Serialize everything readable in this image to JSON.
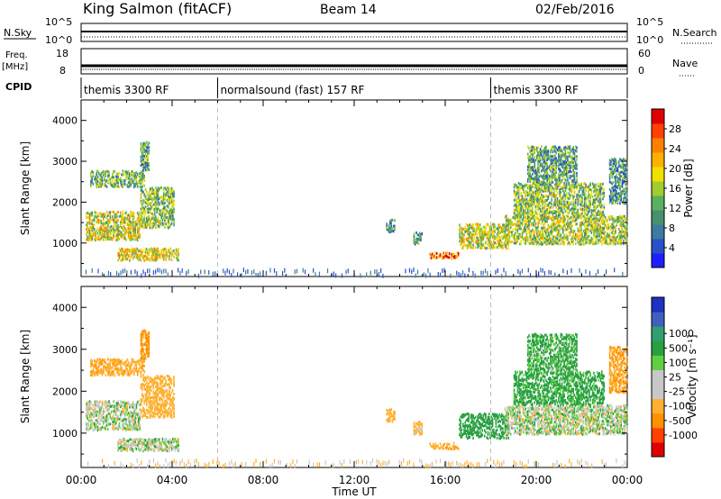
{
  "header": {
    "station": "King Salmon (fitACF)",
    "beam": "Beam 14",
    "date": "02/Feb/2016"
  },
  "noise_panel": {
    "left_label": "N.Sky",
    "right_label": "N.Search",
    "y_ticks_left": [
      "10^5",
      "10^0"
    ],
    "y_ticks_right": [
      "10^5",
      "10^0"
    ]
  },
  "freq_panel": {
    "left_label_1": "Freq.",
    "left_label_2": "[MHz]",
    "right_label": "Nave",
    "y_ticks_left": [
      "18",
      "8"
    ],
    "y_ticks_right": [
      "60",
      "0"
    ]
  },
  "cpid_panel": {
    "label": "CPID",
    "segments": [
      {
        "name": "themis 3300 RF",
        "start_hour": 0,
        "end_hour": 6
      },
      {
        "name": "normalsound (fast) 157 RF",
        "start_hour": 6,
        "end_hour": 18
      },
      {
        "name": "themis 3300 RF",
        "start_hour": 18,
        "end_hour": 24
      }
    ]
  },
  "chart_data": [
    {
      "type": "heatmap",
      "panel": "power",
      "ylabel": "Slant Range [km]",
      "xlabel": "Time UT",
      "xlim_hours": [
        0,
        24
      ],
      "ylim_km": [
        180,
        4500
      ],
      "y_ticks": [
        "1000",
        "2000",
        "3000",
        "4000"
      ],
      "x_ticks": [
        "00:00",
        "04:00",
        "08:00",
        "12:00",
        "16:00",
        "20:00",
        "00:00"
      ],
      "colorbar": {
        "label": "Power [dB]",
        "ticks": [
          "4",
          "8",
          "12",
          "16",
          "20",
          "24",
          "28"
        ],
        "colors": [
          "#1e1eff",
          "#2850c8",
          "#3c7aa0",
          "#48906e",
          "#58b060",
          "#a0cc30",
          "#f0e000",
          "#ffb000",
          "#ff8000",
          "#ff4000",
          "#e00000"
        ]
      },
      "echo_regions": [
        {
          "t0": 0.2,
          "t1": 2.6,
          "r0": 1100,
          "r1": 1800,
          "level": 0.55
        },
        {
          "t0": 0.4,
          "t1": 2.8,
          "r0": 2400,
          "r1": 2800,
          "level": 0.4
        },
        {
          "t0": 2.6,
          "t1": 4.1,
          "r0": 1400,
          "r1": 2400,
          "level": 0.45
        },
        {
          "t0": 1.6,
          "t1": 4.3,
          "r0": 600,
          "r1": 900,
          "level": 0.6
        },
        {
          "t0": 2.6,
          "t1": 3.0,
          "r0": 2800,
          "r1": 3500,
          "level": 0.35
        },
        {
          "t0": 13.4,
          "t1": 13.8,
          "r0": 1300,
          "r1": 1600,
          "level": 0.3
        },
        {
          "t0": 14.6,
          "t1": 15.0,
          "r0": 1000,
          "r1": 1300,
          "level": 0.3
        },
        {
          "t0": 15.3,
          "t1": 16.6,
          "r0": 650,
          "r1": 800,
          "level": 0.8
        },
        {
          "t0": 16.6,
          "t1": 18.8,
          "r0": 900,
          "r1": 1500,
          "level": 0.55
        },
        {
          "t0": 18.6,
          "t1": 24.0,
          "r0": 1000,
          "r1": 1700,
          "level": 0.5
        },
        {
          "t0": 19.0,
          "t1": 23.0,
          "r0": 1700,
          "r1": 2500,
          "level": 0.45
        },
        {
          "t0": 19.6,
          "t1": 21.8,
          "r0": 2500,
          "r1": 3400,
          "level": 0.35
        },
        {
          "t0": 23.2,
          "t1": 24.0,
          "r0": 2000,
          "r1": 3100,
          "level": 0.3
        }
      ]
    },
    {
      "type": "heatmap",
      "panel": "velocity",
      "ylabel": "Slant Range [km]",
      "xlabel": "Time UT",
      "xlim_hours": [
        0,
        24
      ],
      "ylim_km": [
        180,
        4500
      ],
      "y_ticks": [
        "1000",
        "2000",
        "3000",
        "4000"
      ],
      "x_ticks": [
        "00:00",
        "04:00",
        "08:00",
        "12:00",
        "16:00",
        "20:00",
        "00:00"
      ],
      "colorbar": {
        "label": "Velocity [m s⁻¹]",
        "ticks": [
          "-1000",
          "-500",
          "-100",
          "-25",
          "25",
          "100",
          "500",
          "1000"
        ],
        "colors": [
          "#e00000",
          "#ff4000",
          "#ff9000",
          "#ffb030",
          "#c8c8c8",
          "#c8c8c8",
          "#60d040",
          "#28a040",
          "#30a070",
          "#4060c0",
          "#2030c0"
        ]
      },
      "echo_regions": [
        {
          "t0": 0.2,
          "t1": 2.6,
          "r0": 1100,
          "r1": 1800,
          "velocity": 0
        },
        {
          "t0": 0.4,
          "t1": 2.8,
          "r0": 2400,
          "r1": 2800,
          "velocity": -400
        },
        {
          "t0": 2.6,
          "t1": 4.1,
          "r0": 1400,
          "r1": 2400,
          "velocity": -300
        },
        {
          "t0": 1.6,
          "t1": 4.3,
          "r0": 600,
          "r1": 900,
          "velocity": 0
        },
        {
          "t0": 2.6,
          "t1": 3.0,
          "r0": 2800,
          "r1": 3500,
          "velocity": -600
        },
        {
          "t0": 13.4,
          "t1": 13.8,
          "r0": 1300,
          "r1": 1600,
          "velocity": -300
        },
        {
          "t0": 14.6,
          "t1": 15.0,
          "r0": 1000,
          "r1": 1300,
          "velocity": -200
        },
        {
          "t0": 15.3,
          "t1": 16.6,
          "r0": 650,
          "r1": 800,
          "velocity": -400
        },
        {
          "t0": 16.6,
          "t1": 18.8,
          "r0": 900,
          "r1": 1500,
          "velocity": 300
        },
        {
          "t0": 18.6,
          "t1": 24.0,
          "r0": 1000,
          "r1": 1700,
          "velocity": 0
        },
        {
          "t0": 19.0,
          "t1": 23.0,
          "r0": 1700,
          "r1": 2500,
          "velocity": 200
        },
        {
          "t0": 19.6,
          "t1": 21.8,
          "r0": 2500,
          "r1": 3400,
          "velocity": 150
        },
        {
          "t0": 23.2,
          "t1": 24.0,
          "r0": 2000,
          "r1": 3100,
          "velocity": -500
        }
      ]
    }
  ]
}
